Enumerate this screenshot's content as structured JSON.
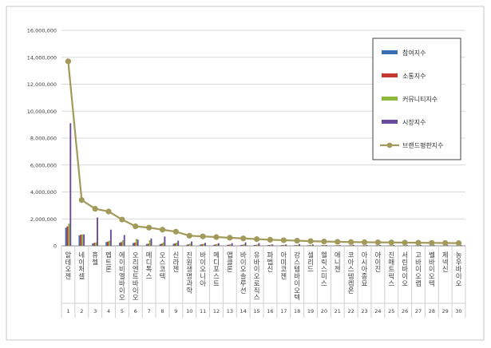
{
  "chart_data": {
    "type": "bar",
    "title": "",
    "xlabel": "",
    "ylabel": "",
    "ylim": [
      0,
      16000000
    ],
    "yticks": [
      "0",
      "2,000,000",
      "4,000,000",
      "6,000,000",
      "8,000,000",
      "10,000,000",
      "12,000,000",
      "14,000,000",
      "16,000,000"
    ],
    "ytick_values": [
      0,
      2000000,
      4000000,
      6000000,
      8000000,
      10000000,
      12000000,
      14000000,
      16000000
    ],
    "grid": true,
    "legend_position": "top-right",
    "ranks": [
      "1",
      "2",
      "3",
      "4",
      "5",
      "6",
      "7",
      "8",
      "9",
      "10",
      "11",
      "12",
      "13",
      "14",
      "15",
      "16",
      "17",
      "18",
      "19",
      "20",
      "21",
      "22",
      "23",
      "24",
      "25",
      "26",
      "27",
      "28",
      "29",
      "30"
    ],
    "categories": [
      "알테오젠",
      "네이처셀",
      "휴젤",
      "펩트론",
      "에이비엘바이오",
      "오리엔트바이오",
      "메디톡스",
      "오스코텍",
      "신라젠",
      "진원생명과학",
      "바이오니아",
      "메디포스트",
      "앱클론",
      "바이오솔루션",
      "유바이오로직스",
      "파멥신",
      "아미코젠",
      "강스템바이오텍",
      "셀리드",
      "헬릭스미스",
      "애니젠",
      "코아스템켐온",
      "아시아종묘",
      "아이진",
      "진매트릭스",
      "서린바이오",
      "고바이오랩",
      "쎌바이오텍",
      "제넥신",
      "농우바이오"
    ],
    "series": [
      {
        "name": "참여지수",
        "kind": "bar",
        "color": "#3b6eb5",
        "values": [
          1350000,
          780000,
          180000,
          280000,
          230000,
          210000,
          140000,
          130000,
          150000,
          90000,
          100000,
          80000,
          70000,
          60000,
          60000,
          50000,
          50000,
          40000,
          40000,
          40000,
          30000,
          30000,
          30000,
          30000,
          25000,
          25000,
          20000,
          20000,
          20000,
          20000
        ]
      },
      {
        "name": "소통지수",
        "kind": "bar",
        "color": "#c0382f",
        "values": [
          1450000,
          830000,
          220000,
          320000,
          280000,
          240000,
          160000,
          160000,
          180000,
          110000,
          120000,
          100000,
          90000,
          80000,
          70000,
          60000,
          60000,
          50000,
          50000,
          50000,
          40000,
          40000,
          40000,
          40000,
          30000,
          30000,
          30000,
          30000,
          30000,
          30000
        ]
      },
      {
        "name": "커뮤니티지수",
        "kind": "bar",
        "color": "#8cbb3e",
        "values": [
          1650000,
          850000,
          260000,
          380000,
          420000,
          520000,
          420000,
          260000,
          240000,
          170000,
          150000,
          140000,
          120000,
          110000,
          100000,
          90000,
          80000,
          80000,
          70000,
          60000,
          50000,
          50000,
          50000,
          50000,
          40000,
          40000,
          40000,
          40000,
          40000,
          40000
        ]
      },
      {
        "name": "시장지수",
        "kind": "bar",
        "color": "#6a4a9c",
        "values": [
          9100000,
          850000,
          2100000,
          1200000,
          800000,
          460000,
          550000,
          690000,
          380000,
          320000,
          220000,
          200000,
          200000,
          250000,
          200000,
          100000,
          100000,
          130000,
          100000,
          60000,
          50000,
          80000,
          70000,
          60000,
          60000,
          50000,
          60000,
          50000,
          50000,
          50000
        ]
      },
      {
        "name": "브랜드평판지수",
        "kind": "line",
        "color": "#a29a5a",
        "values": [
          13700000,
          3400000,
          2750000,
          2550000,
          1950000,
          1450000,
          1350000,
          1200000,
          1050000,
          750000,
          700000,
          650000,
          600000,
          550000,
          500000,
          450000,
          420000,
          380000,
          350000,
          320000,
          300000,
          280000,
          270000,
          260000,
          250000,
          240000,
          230000,
          220000,
          210000,
          200000
        ]
      }
    ]
  }
}
